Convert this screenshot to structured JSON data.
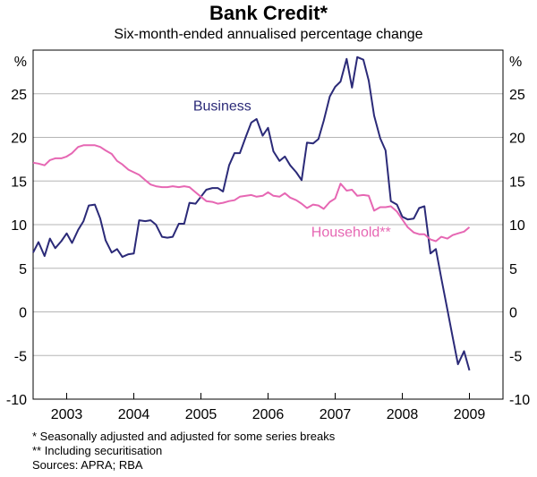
{
  "title": "Bank Credit*",
  "subtitle": "Six-month-ended annualised percentage change",
  "chart_data": {
    "type": "line",
    "title": "Bank Credit*",
    "subtitle": "Six-month-ended annualised percentage change",
    "unit_left": "%",
    "unit_right": "%",
    "x_range": [
      2002.5,
      2009.5
    ],
    "ylim": [
      -10,
      30
    ],
    "y_ticks": [
      -10,
      -5,
      0,
      5,
      10,
      15,
      20,
      25
    ],
    "y_tick_labels": [
      "-10",
      "-5",
      "0",
      "5",
      "10",
      "15",
      "20",
      "25"
    ],
    "x_tick_labels": [
      "2003",
      "2004",
      "2005",
      "2006",
      "2007",
      "2008",
      "2009"
    ],
    "x_label_positions": [
      2003,
      2004,
      2005,
      2006,
      2007,
      2008,
      2009
    ],
    "series": [
      {
        "name": "Business",
        "color": "#2b2a78",
        "points": [
          [
            2002.5,
            6.8
          ],
          [
            2002.58,
            8
          ],
          [
            2002.67,
            6.4
          ],
          [
            2002.75,
            8.4
          ],
          [
            2002.83,
            7.3
          ],
          [
            2002.92,
            8.1
          ],
          [
            2003.0,
            9.0
          ],
          [
            2003.08,
            7.9
          ],
          [
            2003.17,
            9.4
          ],
          [
            2003.25,
            10.4
          ],
          [
            2003.33,
            12.2
          ],
          [
            2003.42,
            12.3
          ],
          [
            2003.5,
            10.7
          ],
          [
            2003.58,
            8.2
          ],
          [
            2003.67,
            6.8
          ],
          [
            2003.75,
            7.2
          ],
          [
            2003.83,
            6.3
          ],
          [
            2003.92,
            6.6
          ],
          [
            2004.0,
            6.7
          ],
          [
            2004.08,
            10.5
          ],
          [
            2004.17,
            10.4
          ],
          [
            2004.25,
            10.5
          ],
          [
            2004.33,
            10.0
          ],
          [
            2004.42,
            8.6
          ],
          [
            2004.5,
            8.5
          ],
          [
            2004.58,
            8.6
          ],
          [
            2004.67,
            10.1
          ],
          [
            2004.75,
            10.1
          ],
          [
            2004.83,
            12.5
          ],
          [
            2004.92,
            12.4
          ],
          [
            2005.0,
            13.2
          ],
          [
            2005.08,
            14.0
          ],
          [
            2005.17,
            14.2
          ],
          [
            2005.25,
            14.2
          ],
          [
            2005.33,
            13.8
          ],
          [
            2005.42,
            16.8
          ],
          [
            2005.5,
            18.2
          ],
          [
            2005.58,
            18.2
          ],
          [
            2005.67,
            20.1
          ],
          [
            2005.75,
            21.7
          ],
          [
            2005.83,
            22.1
          ],
          [
            2005.92,
            20.2
          ],
          [
            2006.0,
            21.1
          ],
          [
            2006.08,
            18.4
          ],
          [
            2006.17,
            17.3
          ],
          [
            2006.25,
            17.8
          ],
          [
            2006.33,
            16.8
          ],
          [
            2006.42,
            16.0
          ],
          [
            2006.5,
            15.1
          ],
          [
            2006.58,
            19.4
          ],
          [
            2006.67,
            19.3
          ],
          [
            2006.75,
            19.8
          ],
          [
            2006.83,
            21.9
          ],
          [
            2006.92,
            24.7
          ],
          [
            2007.0,
            25.8
          ],
          [
            2007.08,
            26.4
          ],
          [
            2007.17,
            29.0
          ],
          [
            2007.25,
            25.7
          ],
          [
            2007.33,
            29.2
          ],
          [
            2007.42,
            28.9
          ],
          [
            2007.5,
            26.5
          ],
          [
            2007.58,
            22.5
          ],
          [
            2007.67,
            19.9
          ],
          [
            2007.75,
            18.5
          ],
          [
            2007.83,
            12.7
          ],
          [
            2007.92,
            12.3
          ],
          [
            2008.0,
            10.9
          ],
          [
            2008.08,
            10.6
          ],
          [
            2008.17,
            10.7
          ],
          [
            2008.25,
            11.9
          ],
          [
            2008.33,
            12.1
          ],
          [
            2008.42,
            6.7
          ],
          [
            2008.5,
            7.2
          ],
          [
            2008.58,
            3.9
          ],
          [
            2008.67,
            0.3
          ],
          [
            2008.75,
            -2.9
          ],
          [
            2008.83,
            -6.0
          ],
          [
            2008.92,
            -4.5
          ],
          [
            2009.0,
            -6.7
          ]
        ]
      },
      {
        "name": "Household**",
        "color": "#e667b3",
        "points": [
          [
            2002.5,
            17.1
          ],
          [
            2002.58,
            17.0
          ],
          [
            2002.67,
            16.8
          ],
          [
            2002.75,
            17.4
          ],
          [
            2002.83,
            17.6
          ],
          [
            2002.92,
            17.6
          ],
          [
            2003.0,
            17.8
          ],
          [
            2003.08,
            18.2
          ],
          [
            2003.17,
            18.9
          ],
          [
            2003.25,
            19.1
          ],
          [
            2003.33,
            19.1
          ],
          [
            2003.42,
            19.1
          ],
          [
            2003.5,
            18.9
          ],
          [
            2003.58,
            18.5
          ],
          [
            2003.67,
            18.1
          ],
          [
            2003.75,
            17.3
          ],
          [
            2003.83,
            16.9
          ],
          [
            2003.92,
            16.3
          ],
          [
            2004.0,
            16.0
          ],
          [
            2004.08,
            15.7
          ],
          [
            2004.17,
            15.1
          ],
          [
            2004.25,
            14.6
          ],
          [
            2004.33,
            14.4
          ],
          [
            2004.42,
            14.3
          ],
          [
            2004.5,
            14.3
          ],
          [
            2004.58,
            14.4
          ],
          [
            2004.67,
            14.3
          ],
          [
            2004.75,
            14.4
          ],
          [
            2004.83,
            14.3
          ],
          [
            2004.92,
            13.7
          ],
          [
            2005.0,
            13.2
          ],
          [
            2005.08,
            12.7
          ],
          [
            2005.17,
            12.6
          ],
          [
            2005.25,
            12.4
          ],
          [
            2005.33,
            12.5
          ],
          [
            2005.42,
            12.7
          ],
          [
            2005.5,
            12.8
          ],
          [
            2005.58,
            13.2
          ],
          [
            2005.67,
            13.3
          ],
          [
            2005.75,
            13.4
          ],
          [
            2005.83,
            13.2
          ],
          [
            2005.92,
            13.3
          ],
          [
            2006.0,
            13.7
          ],
          [
            2006.08,
            13.3
          ],
          [
            2006.17,
            13.2
          ],
          [
            2006.25,
            13.6
          ],
          [
            2006.33,
            13.1
          ],
          [
            2006.42,
            12.8
          ],
          [
            2006.5,
            12.4
          ],
          [
            2006.58,
            11.9
          ],
          [
            2006.67,
            12.3
          ],
          [
            2006.75,
            12.2
          ],
          [
            2006.83,
            11.8
          ],
          [
            2006.92,
            12.6
          ],
          [
            2007.0,
            13.0
          ],
          [
            2007.08,
            14.7
          ],
          [
            2007.17,
            13.9
          ],
          [
            2007.25,
            14.0
          ],
          [
            2007.33,
            13.3
          ],
          [
            2007.42,
            13.4
          ],
          [
            2007.5,
            13.3
          ],
          [
            2007.58,
            11.6
          ],
          [
            2007.67,
            12.0
          ],
          [
            2007.75,
            12.0
          ],
          [
            2007.83,
            12.1
          ],
          [
            2007.92,
            11.5
          ],
          [
            2008.0,
            10.6
          ],
          [
            2008.08,
            9.7
          ],
          [
            2008.17,
            9.1
          ],
          [
            2008.25,
            8.9
          ],
          [
            2008.33,
            8.9
          ],
          [
            2008.42,
            8.3
          ],
          [
            2008.5,
            8.1
          ],
          [
            2008.58,
            8.6
          ],
          [
            2008.67,
            8.4
          ],
          [
            2008.75,
            8.8
          ],
          [
            2008.83,
            9.0
          ],
          [
            2008.92,
            9.2
          ],
          [
            2009.0,
            9.7
          ]
        ]
      }
    ],
    "annotations": [
      {
        "text": "Business",
        "series": "Business",
        "at": [
          2005.75,
          23.1
        ]
      },
      {
        "text": "Household**",
        "series": "Household**",
        "at": [
          2007.83,
          8.6
        ]
      }
    ],
    "grid": true
  },
  "notes": {
    "footnote1": "*   Seasonally adjusted and adjusted for some series breaks",
    "footnote2": "** Including securitisation",
    "sources": "Sources: APRA; RBA"
  }
}
